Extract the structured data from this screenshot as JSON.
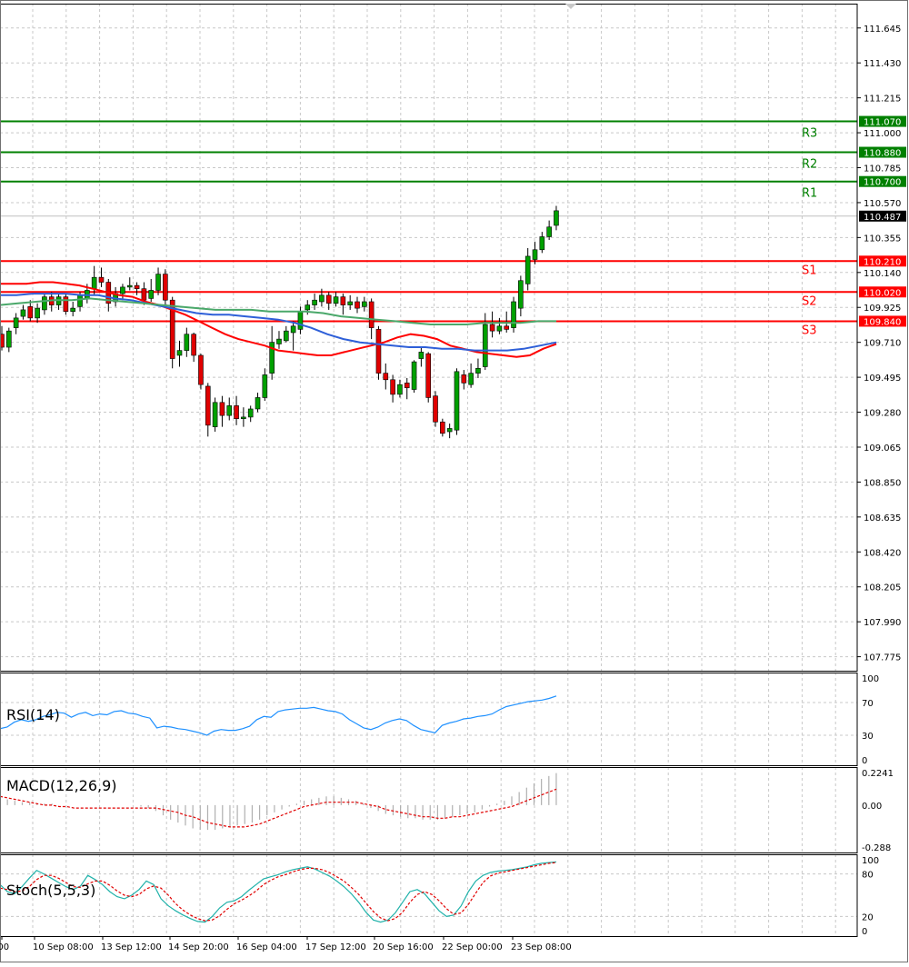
{
  "chart_data": {
    "type": "candlestick",
    "price_axis": {
      "ticks": [
        "111.645",
        "111.430",
        "111.215",
        "111.000",
        "110.785",
        "110.570",
        "110.355",
        "110.140",
        "109.925",
        "109.710",
        "109.495",
        "109.280",
        "109.065",
        "108.850",
        "108.635",
        "108.420",
        "108.205",
        "107.990",
        "107.775"
      ],
      "range": [
        107.7,
        111.75
      ]
    },
    "current_price": "110.487",
    "levels": [
      {
        "name": "R3",
        "value": "111.070",
        "color": "#008000"
      },
      {
        "name": "R2",
        "value": "110.880",
        "color": "#008000"
      },
      {
        "name": "R1",
        "value": "110.700",
        "color": "#008000"
      },
      {
        "name": "S1",
        "value": "110.210",
        "color": "#ff0000"
      },
      {
        "name": "S2",
        "value": "110.020",
        "color": "#ff0000"
      },
      {
        "name": "S3",
        "value": "109.840",
        "color": "#ff0000"
      }
    ],
    "time_labels": [
      ":00",
      "10 Sep 08:00",
      "13 Sep 12:00",
      "14 Sep 20:00",
      "16 Sep 04:00",
      "17 Sep 12:00",
      "20 Sep 16:00",
      "22 Sep 00:00",
      "23 Sep 08:00"
    ],
    "candles": [
      [
        109.76,
        109.68,
        109.81,
        109.66
      ],
      [
        109.68,
        109.78,
        109.8,
        109.65
      ],
      [
        109.8,
        109.86,
        109.89,
        109.76
      ],
      [
        109.87,
        109.91,
        109.94,
        109.85
      ],
      [
        109.93,
        109.86,
        109.97,
        109.84
      ],
      [
        109.86,
        109.92,
        109.95,
        109.83
      ],
      [
        109.91,
        109.99,
        110.01,
        109.88
      ],
      [
        109.99,
        109.94,
        110.02,
        109.9
      ],
      [
        109.94,
        109.99,
        110.01,
        109.91
      ],
      [
        109.99,
        109.9,
        110.01,
        109.88
      ],
      [
        109.9,
        109.92,
        109.96,
        109.87
      ],
      [
        109.93,
        110.0,
        110.02,
        109.9
      ],
      [
        109.98,
        110.03,
        110.07,
        109.95
      ],
      [
        110.04,
        110.11,
        110.18,
        110.0
      ],
      [
        110.11,
        110.08,
        110.17,
        110.05
      ],
      [
        110.08,
        109.95,
        110.1,
        109.9
      ],
      [
        109.96,
        110.01,
        110.05,
        109.93
      ],
      [
        110.01,
        110.05,
        110.07,
        109.97
      ],
      [
        110.05,
        110.06,
        110.11,
        110.03
      ],
      [
        110.06,
        110.04,
        110.08,
        110.0
      ],
      [
        110.04,
        109.97,
        110.08,
        109.94
      ],
      [
        109.98,
        110.03,
        110.1,
        109.96
      ],
      [
        110.03,
        110.13,
        110.17,
        110.0
      ],
      [
        110.13,
        109.97,
        110.16,
        109.94
      ],
      [
        109.97,
        109.61,
        109.99,
        109.55
      ],
      [
        109.63,
        109.66,
        109.72,
        109.56
      ],
      [
        109.66,
        109.76,
        109.8,
        109.62
      ],
      [
        109.76,
        109.63,
        109.77,
        109.59
      ],
      [
        109.63,
        109.45,
        109.64,
        109.42
      ],
      [
        109.44,
        109.2,
        109.46,
        109.13
      ],
      [
        109.19,
        109.34,
        109.37,
        109.16
      ],
      [
        109.34,
        109.26,
        109.38,
        109.19
      ],
      [
        109.26,
        109.32,
        109.37,
        109.23
      ],
      [
        109.32,
        109.24,
        109.38,
        109.2
      ],
      [
        109.24,
        109.25,
        109.31,
        109.19
      ],
      [
        109.25,
        109.3,
        109.32,
        109.22
      ],
      [
        109.3,
        109.37,
        109.4,
        109.28
      ],
      [
        109.37,
        109.51,
        109.55,
        109.35
      ],
      [
        109.52,
        109.71,
        109.81,
        109.48
      ],
      [
        109.7,
        109.73,
        109.78,
        109.67
      ],
      [
        109.72,
        109.78,
        109.81,
        109.71
      ],
      [
        109.77,
        109.81,
        109.84,
        109.66
      ],
      [
        109.79,
        109.9,
        109.93,
        109.76
      ],
      [
        109.91,
        109.94,
        109.97,
        109.88
      ],
      [
        109.94,
        109.97,
        110.01,
        109.91
      ],
      [
        109.96,
        110.0,
        110.04,
        109.93
      ],
      [
        110.0,
        109.95,
        110.02,
        109.91
      ],
      [
        109.95,
        109.99,
        110.02,
        109.93
      ],
      [
        109.99,
        109.94,
        110.01,
        109.88
      ],
      [
        109.94,
        109.96,
        110.0,
        109.91
      ],
      [
        109.96,
        109.92,
        109.99,
        109.89
      ],
      [
        109.93,
        109.96,
        109.99,
        109.9
      ],
      [
        109.96,
        109.8,
        109.98,
        109.73
      ],
      [
        109.79,
        109.52,
        109.81,
        109.48
      ],
      [
        109.52,
        109.48,
        109.58,
        109.42
      ],
      [
        109.48,
        109.39,
        109.51,
        109.34
      ],
      [
        109.39,
        109.45,
        109.48,
        109.37
      ],
      [
        109.46,
        109.43,
        109.49,
        109.36
      ],
      [
        109.42,
        109.59,
        109.6,
        109.4
      ],
      [
        109.61,
        109.65,
        109.68,
        109.56
      ],
      [
        109.64,
        109.37,
        109.65,
        109.34
      ],
      [
        109.38,
        109.22,
        109.41,
        109.19
      ],
      [
        109.22,
        109.15,
        109.24,
        109.13
      ],
      [
        109.16,
        109.18,
        109.21,
        109.12
      ],
      [
        109.17,
        109.53,
        109.55,
        109.14
      ],
      [
        109.51,
        109.46,
        109.54,
        109.42
      ],
      [
        109.45,
        109.52,
        109.58,
        109.43
      ],
      [
        109.52,
        109.55,
        109.61,
        109.49
      ],
      [
        109.56,
        109.82,
        109.89,
        109.54
      ],
      [
        109.82,
        109.78,
        109.9,
        109.74
      ],
      [
        109.78,
        109.81,
        109.86,
        109.76
      ],
      [
        109.81,
        109.79,
        109.9,
        109.77
      ],
      [
        109.8,
        109.96,
        109.99,
        109.77
      ],
      [
        109.92,
        110.09,
        110.12,
        109.87
      ],
      [
        110.07,
        110.24,
        110.29,
        110.03
      ],
      [
        110.22,
        110.28,
        110.33,
        110.19
      ],
      [
        110.28,
        110.36,
        110.39,
        110.26
      ],
      [
        110.36,
        110.42,
        110.46,
        110.34
      ],
      [
        110.43,
        110.52,
        110.55,
        110.4
      ]
    ],
    "ma_lines": [
      {
        "color": "#ff0000",
        "values": [
          110.07,
          110.07,
          110.07,
          110.08,
          110.08,
          110.07,
          110.06,
          110.04,
          110.02,
          110.0,
          109.99,
          109.96,
          109.94,
          109.91,
          109.88,
          109.84,
          109.8,
          109.76,
          109.73,
          109.71,
          109.69,
          109.66,
          109.65,
          109.64,
          109.63,
          109.63,
          109.65,
          109.67,
          109.69,
          109.71,
          109.74,
          109.76,
          109.75,
          109.73,
          109.69,
          109.67,
          109.65,
          109.64,
          109.63,
          109.62,
          109.63,
          109.67,
          109.7
        ]
      },
      {
        "color": "#2e5fd8",
        "values": [
          110.0,
          110.0,
          110.01,
          110.01,
          110.01,
          110.0,
          110.0,
          109.98,
          109.97,
          109.95,
          109.93,
          109.91,
          109.89,
          109.88,
          109.88,
          109.87,
          109.86,
          109.85,
          109.83,
          109.8,
          109.76,
          109.73,
          109.71,
          109.7,
          109.69,
          109.68,
          109.68,
          109.67,
          109.67,
          109.66,
          109.66,
          109.66,
          109.67,
          109.69,
          109.71
        ]
      },
      {
        "color": "#4aa86a",
        "values": [
          109.94,
          109.95,
          109.96,
          109.97,
          109.97,
          109.98,
          109.97,
          109.96,
          109.95,
          109.94,
          109.93,
          109.92,
          109.91,
          109.91,
          109.91,
          109.9,
          109.9,
          109.9,
          109.89,
          109.87,
          109.86,
          109.85,
          109.84,
          109.83,
          109.82,
          109.82,
          109.82,
          109.83,
          109.83,
          109.83,
          109.84,
          109.84
        ]
      }
    ],
    "rsi": {
      "label": "RSI(14)",
      "ticks": [
        "100",
        "70",
        "30",
        "0"
      ],
      "values": [
        38,
        40,
        46,
        49,
        47,
        49,
        53,
        55,
        58,
        57,
        52,
        56,
        58,
        54,
        56,
        55,
        59,
        60,
        57,
        56,
        53,
        51,
        39,
        41,
        40,
        38,
        37,
        35,
        33,
        30,
        35,
        37,
        36,
        36,
        38,
        41,
        49,
        53,
        52,
        59,
        61,
        62,
        63,
        63,
        64,
        62,
        60,
        59,
        56,
        49,
        44,
        39,
        37,
        40,
        45,
        48,
        50,
        48,
        42,
        37,
        35,
        33,
        42,
        45,
        47,
        50,
        51,
        53,
        54,
        56,
        61,
        65,
        67,
        69,
        71,
        72,
        73,
        75,
        78
      ]
    },
    "macd": {
      "label": "MACD(12,26,9)",
      "ticks": [
        "0.2241",
        "0.00",
        "-0.288"
      ],
      "hist": [
        0.05,
        0.04,
        0.03,
        0.02,
        0.02,
        0.01,
        0.01,
        0.01,
        0.0,
        0.0,
        0.0,
        0.0,
        0.0,
        0.0,
        0.0,
        0.0,
        0.0,
        0.0,
        0.0,
        -0.01,
        -0.02,
        -0.04,
        -0.07,
        -0.1,
        -0.12,
        -0.14,
        -0.16,
        -0.17,
        -0.17,
        -0.17,
        -0.16,
        -0.15,
        -0.14,
        -0.13,
        -0.12,
        -0.1,
        -0.07,
        -0.05,
        -0.03,
        -0.01,
        0.01,
        0.03,
        0.04,
        0.05,
        0.06,
        0.06,
        0.05,
        0.04,
        0.03,
        0.01,
        -0.02,
        -0.04,
        -0.06,
        -0.07,
        -0.08,
        -0.09,
        -0.09,
        -0.1,
        -0.1,
        -0.1,
        -0.09,
        -0.08,
        -0.07,
        -0.06,
        -0.05,
        -0.03,
        -0.01,
        0.01,
        0.03,
        0.06,
        0.09,
        0.12,
        0.15,
        0.18,
        0.2,
        0.22
      ],
      "signal": [
        0.06,
        0.05,
        0.04,
        0.03,
        0.02,
        0.01,
        0.0,
        0.0,
        -0.01,
        -0.01,
        -0.02,
        -0.02,
        -0.02,
        -0.02,
        -0.02,
        -0.02,
        -0.02,
        -0.02,
        -0.02,
        -0.02,
        -0.02,
        -0.02,
        -0.03,
        -0.04,
        -0.05,
        -0.07,
        -0.08,
        -0.1,
        -0.12,
        -0.13,
        -0.14,
        -0.15,
        -0.15,
        -0.15,
        -0.14,
        -0.13,
        -0.11,
        -0.09,
        -0.07,
        -0.05,
        -0.03,
        -0.01,
        0.0,
        0.01,
        0.02,
        0.02,
        0.02,
        0.02,
        0.02,
        0.01,
        0.0,
        -0.01,
        -0.03,
        -0.04,
        -0.05,
        -0.06,
        -0.07,
        -0.08,
        -0.08,
        -0.09,
        -0.09,
        -0.08,
        -0.08,
        -0.07,
        -0.06,
        -0.05,
        -0.04,
        -0.03,
        -0.02,
        -0.01,
        0.01,
        0.03,
        0.05,
        0.07,
        0.09,
        0.11
      ]
    },
    "stoch": {
      "label": "Stoch(5,5,3)",
      "ticks": [
        "100",
        "80",
        "20",
        "0"
      ],
      "main": [
        65,
        55,
        52,
        62,
        74,
        85,
        80,
        74,
        68,
        62,
        58,
        63,
        78,
        72,
        65,
        55,
        48,
        45,
        50,
        58,
        70,
        65,
        45,
        35,
        28,
        22,
        17,
        13,
        12,
        20,
        32,
        40,
        42,
        48,
        57,
        65,
        73,
        76,
        79,
        83,
        86,
        88,
        90,
        87,
        82,
        77,
        70,
        62,
        52,
        40,
        26,
        15,
        12,
        15,
        25,
        40,
        55,
        58,
        52,
        40,
        28,
        20,
        22,
        35,
        55,
        70,
        78,
        82,
        84,
        85,
        86,
        88,
        90,
        93,
        95,
        96,
        97
      ],
      "signal": [
        60,
        58,
        55,
        56,
        62,
        72,
        78,
        78,
        74,
        68,
        62,
        61,
        66,
        70,
        70,
        64,
        56,
        50,
        48,
        51,
        59,
        63,
        60,
        50,
        38,
        29,
        22,
        17,
        14,
        15,
        21,
        30,
        38,
        43,
        49,
        56,
        65,
        71,
        76,
        79,
        83,
        86,
        88,
        88,
        86,
        82,
        76,
        70,
        61,
        51,
        39,
        27,
        18,
        14,
        17,
        26,
        40,
        51,
        55,
        51,
        42,
        31,
        23,
        25,
        37,
        53,
        68,
        77,
        81,
        83,
        85,
        87,
        89,
        91,
        93,
        95,
        96
      ]
    }
  }
}
